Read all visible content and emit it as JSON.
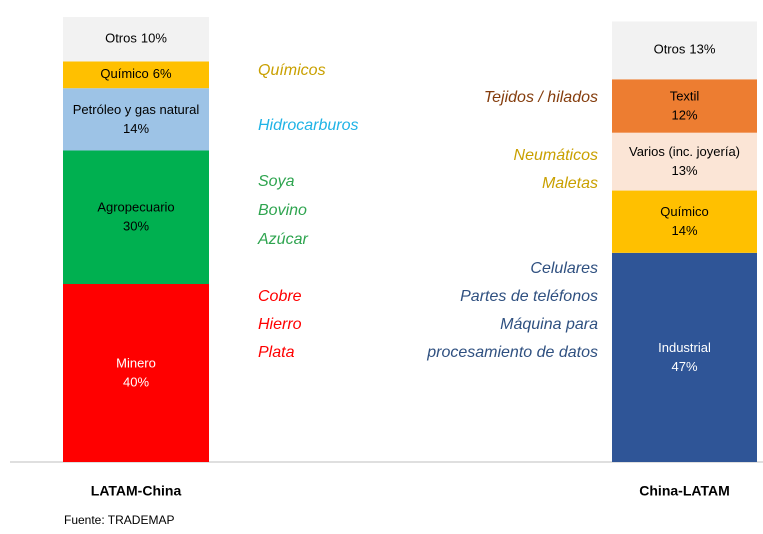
{
  "chart_data": {
    "type": "stacked_bar",
    "ylim": [
      0,
      100
    ],
    "bars": [
      {
        "name": "LATAM-China",
        "segments": [
          {
            "name": "Minero",
            "value": 40,
            "value_label": "40%",
            "color": "#ff0000"
          },
          {
            "name": "Agropecuario",
            "value": 30,
            "value_label": "30%",
            "color": "#00b050"
          },
          {
            "name": "Petróleo y gas natural",
            "value": 14,
            "value_label": "14%",
            "color": "#9dc3e6"
          },
          {
            "name": "Químico",
            "value": 6,
            "value_label": "6%",
            "color": "#ffc000"
          },
          {
            "name": "Otros",
            "value": 10,
            "value_label": "10%",
            "color": "#f2f2f2"
          }
        ]
      },
      {
        "name": "China-LATAM",
        "segments": [
          {
            "name": "Industrial",
            "value": 47,
            "value_label": "47%",
            "color": "#2f5597"
          },
          {
            "name": "Químico",
            "value": 14,
            "value_label": "14%",
            "color": "#ffc000"
          },
          {
            "name": "Varios (inc. joyería)",
            "value": 13,
            "value_label": "13%",
            "color": "#fbe5d6"
          },
          {
            "name": "Textil",
            "value": 12,
            "value_label": "12%",
            "color": "#ed7d31"
          },
          {
            "name": "Otros",
            "value": 13,
            "value_label": "13%",
            "color": "#f2f2f2"
          }
        ]
      }
    ],
    "left_annotations": [
      {
        "text": "Químicos",
        "color": "#c9a000"
      },
      {
        "text": "Hidrocarburos",
        "color": "#1fb3e6"
      },
      {
        "text": "Soya",
        "color": "#2ea44f"
      },
      {
        "text": "Bovino",
        "color": "#2ea44f"
      },
      {
        "text": "Azúcar",
        "color": "#2ea44f"
      },
      {
        "text": "Cobre",
        "color": "#ff0000"
      },
      {
        "text": "Hierro",
        "color": "#ff0000"
      },
      {
        "text": "Plata",
        "color": "#ff0000"
      }
    ],
    "right_annotations": [
      {
        "text": "Tejidos / hilados",
        "color": "#843c0c"
      },
      {
        "text": "Neumáticos",
        "color": "#c9a000"
      },
      {
        "text": "Maletas",
        "color": "#c9a000"
      },
      {
        "text": "Celulares",
        "color": "#2f5080"
      },
      {
        "text": "Partes de teléfonos",
        "color": "#2f5080"
      },
      {
        "text": "Máquina para",
        "color": "#2f5080"
      },
      {
        "text": "procesamiento de datos",
        "color": "#2f5080"
      }
    ],
    "source": "Fuente: TRADEMAP"
  }
}
